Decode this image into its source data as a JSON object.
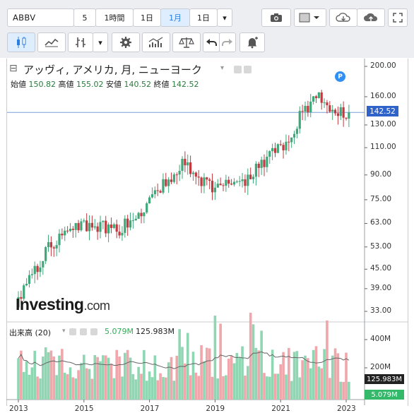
{
  "toolbar": {
    "symbol": "ABBV",
    "interval_5": "5",
    "interval_1h": "1時間",
    "interval_1d": "1日",
    "interval_1m": "1月",
    "range": "1日",
    "dropdown": "▾"
  },
  "legend": {
    "title": "アッヴィ, アメリカ, 月, ニューヨーク",
    "collapse_glyph": "⊟",
    "open_label": "始値",
    "open_value": "150.82",
    "high_label": "高値",
    "high_value": "155.02",
    "low_label": "安値",
    "low_value": "140.52",
    "close_label": "終値",
    "close_value": "142.52"
  },
  "watermark": {
    "brand": "Investing",
    "suffix": ".com"
  },
  "marker": "P",
  "volume": {
    "label": "出来高 (20)",
    "value1": "5.079M",
    "value2": "125.983M",
    "badge_ma": "125.983M",
    "badge_vol": "5.079M"
  },
  "price_axis": [
    "200.00",
    "160.00",
    "130.00",
    "110.00",
    "90.00",
    "75.00",
    "63.00",
    "53.00",
    "45.00",
    "39.00",
    "33.00"
  ],
  "price_badge": "142.52",
  "volume_axis": [
    "400M",
    "200M"
  ],
  "x_axis": [
    "2013",
    "2015",
    "2017",
    "2019",
    "2021",
    "2023"
  ],
  "colors": {
    "up": "#3fa77a",
    "down": "#c2393f",
    "vol_up": "#8fd6b3",
    "vol_down": "#f0a6aa",
    "badge": "#2f63c9"
  },
  "icons": [
    "camera-icon",
    "chart-style-icon",
    "cloud-download-icon",
    "cloud-upload-icon",
    "fullscreen-icon",
    "candles-icon",
    "line-chart-icon",
    "bars-icon",
    "settings-icon",
    "indicators-icon",
    "scale-icon",
    "undo-icon",
    "redo-icon",
    "alert-icon"
  ],
  "chart_data": {
    "type": "candlestick",
    "symbol": "ABBV",
    "y_scale": "log",
    "ylim": [
      30,
      210
    ],
    "x_ticks": [
      "2013",
      "2015",
      "2017",
      "2019",
      "2021",
      "2023"
    ],
    "ohlc_approx": [
      {
        "date": "2013",
        "close": 36
      },
      {
        "date": "2014",
        "close": 55
      },
      {
        "date": "2015",
        "close": 62
      },
      {
        "date": "2016",
        "close": 60
      },
      {
        "date": "2017",
        "close": 73
      },
      {
        "date": "2018",
        "close": 98
      },
      {
        "date": "2019",
        "close": 80
      },
      {
        "date": "2020",
        "close": 88
      },
      {
        "date": "2021",
        "close": 110
      },
      {
        "date": "2022",
        "close": 160
      },
      {
        "date": "2023",
        "close": 142.52
      }
    ],
    "last": {
      "open": 150.82,
      "high": 155.02,
      "low": 140.52,
      "close": 142.52
    },
    "volume_ma_period": 20,
    "volume_last": "5.079M",
    "volume_ma_last": "125.983M"
  }
}
